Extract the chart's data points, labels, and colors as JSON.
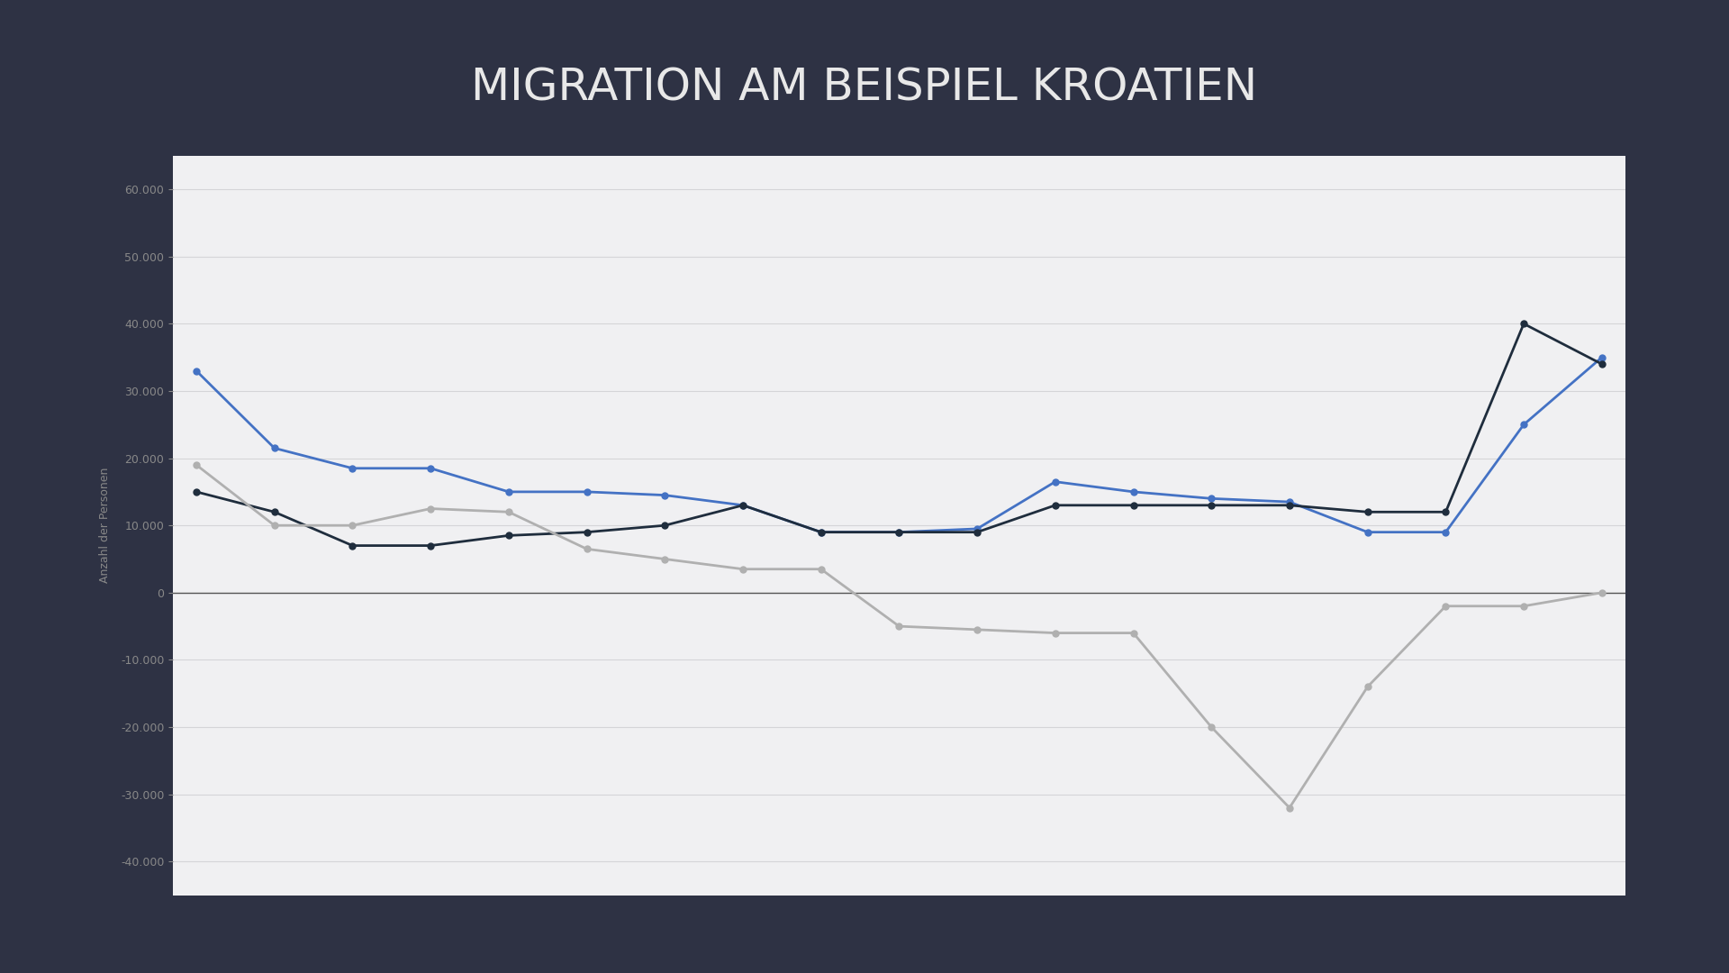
{
  "title": "MIGRATION AM BEISPIEL KROATIEN",
  "ylabel": "Anzahl der Personen",
  "bg_color": "#2e3244",
  "chart_bg": "#f0f0f2",
  "title_color": "#e8e8e8",
  "ylim": [
    -45000,
    65000
  ],
  "yticks": [
    -40000,
    -30000,
    -20000,
    -10000,
    0,
    10000,
    20000,
    30000,
    40000,
    50000,
    60000
  ],
  "x_values": [
    0,
    1,
    2,
    3,
    4,
    5,
    6,
    7,
    8,
    9,
    10,
    11,
    12,
    13,
    14,
    15,
    16,
    17,
    18
  ],
  "blue_line": [
    33000,
    21500,
    18500,
    18500,
    15000,
    15000,
    14500,
    13000,
    9000,
    9000,
    9500,
    16500,
    15000,
    14000,
    13500,
    9000,
    9000,
    25000,
    35000
  ],
  "dark_line": [
    15000,
    12000,
    7000,
    7000,
    8500,
    9000,
    10000,
    13000,
    9000,
    9000,
    9000,
    13000,
    13000,
    13000,
    13000,
    12000,
    12000,
    40000,
    34000
  ],
  "gray_line": [
    19000,
    10000,
    10000,
    12500,
    12000,
    6500,
    5000,
    3500,
    3500,
    -5000,
    -5500,
    -6000,
    -6000,
    -20000,
    -32000,
    -14000,
    -2000,
    -2000,
    0
  ],
  "blue_color": "#4472c4",
  "dark_color": "#1f2d3d",
  "gray_color": "#b0b0b0",
  "line_width": 2.0,
  "marker_size": 5
}
